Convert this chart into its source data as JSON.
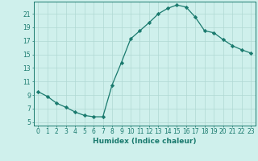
{
  "x": [
    0,
    1,
    2,
    3,
    4,
    5,
    6,
    7,
    8,
    9,
    10,
    11,
    12,
    13,
    14,
    15,
    16,
    17,
    18,
    19,
    20,
    21,
    22,
    23
  ],
  "y": [
    9.5,
    8.8,
    7.8,
    7.2,
    6.5,
    6.0,
    5.8,
    5.8,
    10.5,
    13.8,
    17.3,
    18.5,
    19.7,
    21.0,
    21.8,
    22.3,
    22.0,
    20.5,
    18.5,
    18.2,
    17.2,
    16.3,
    15.7,
    15.2
  ],
  "line_color": "#1a7a6e",
  "marker_color": "#1a7a6e",
  "bg_color": "#cff0ec",
  "grid_color": "#b0d9d3",
  "xlabel": "Humidex (Indice chaleur)",
  "ylim": [
    4.5,
    22.8
  ],
  "xlim": [
    -0.5,
    23.5
  ],
  "yticks": [
    5,
    7,
    9,
    11,
    13,
    15,
    17,
    19,
    21
  ],
  "xticks": [
    0,
    1,
    2,
    3,
    4,
    5,
    6,
    7,
    8,
    9,
    10,
    11,
    12,
    13,
    14,
    15,
    16,
    17,
    18,
    19,
    20,
    21,
    22,
    23
  ],
  "xlabel_fontsize": 6.5,
  "tick_fontsize": 5.5,
  "line_width": 0.9,
  "marker_size": 2.2
}
